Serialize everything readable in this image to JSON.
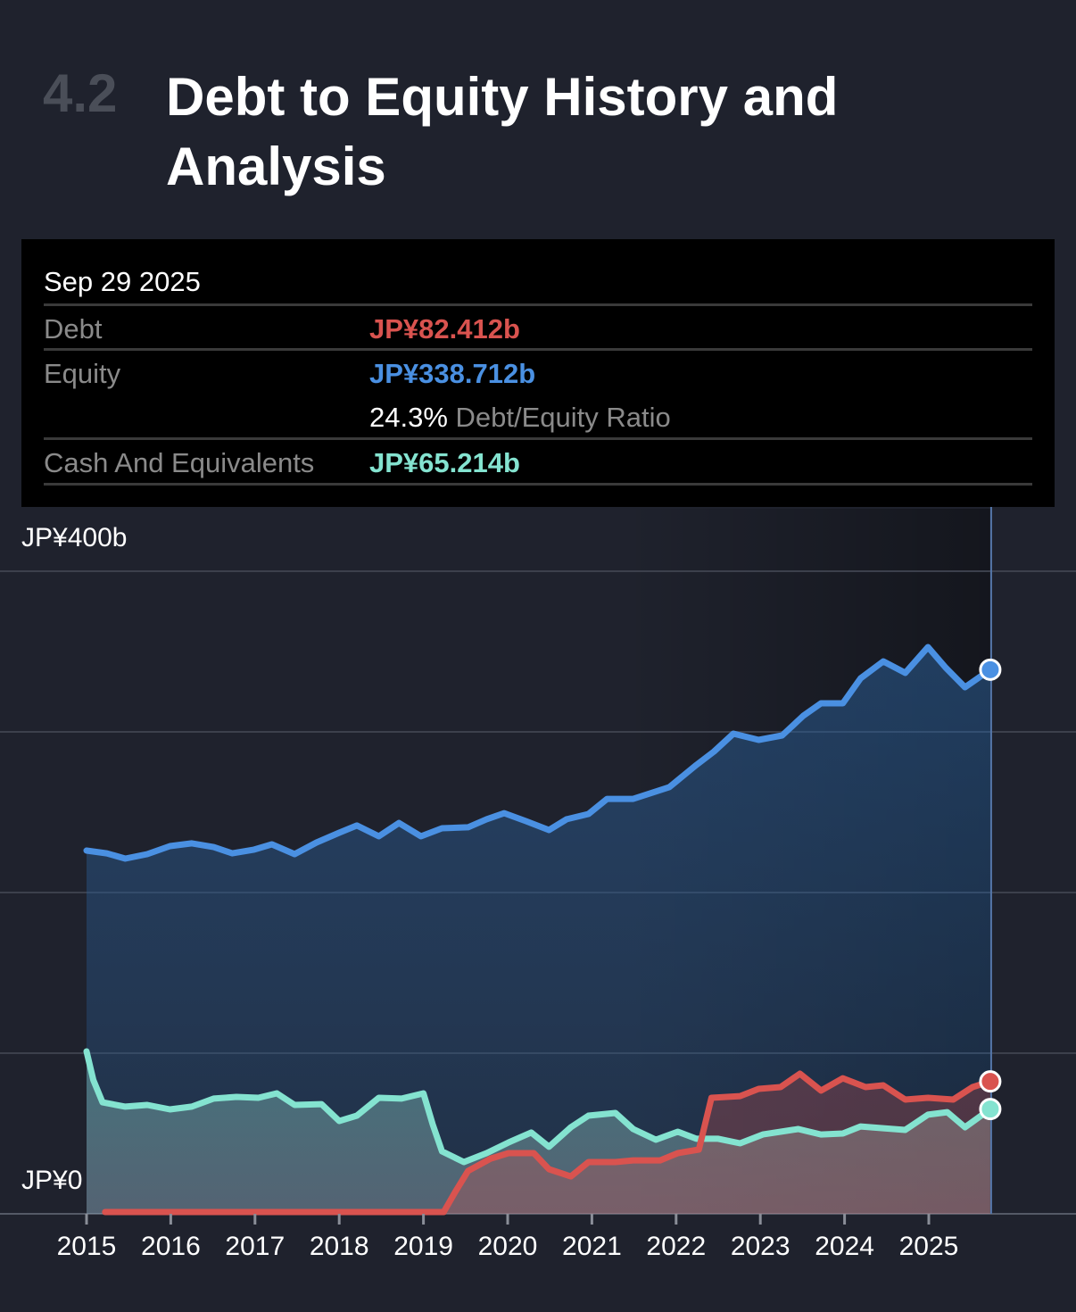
{
  "header": {
    "section_number": "4.2",
    "title": "Debt to Equity History and Analysis"
  },
  "tooltip": {
    "date": "Sep 29 2025",
    "debt_label": "Debt",
    "debt_value": "JP¥82.412b",
    "equity_label": "Equity",
    "equity_value": "JP¥338.712b",
    "ratio_value": "24.3%",
    "ratio_label": "Debt/Equity Ratio",
    "cash_label": "Cash And Equivalents",
    "cash_value": "JP¥65.214b"
  },
  "colors": {
    "debt": "#d9534f",
    "equity": "#4a90e2",
    "cash": "#84e3d0",
    "background": "#1f222d"
  },
  "chart_data": {
    "type": "area",
    "title": "Debt to Equity History and Analysis",
    "xlabel": "",
    "ylabel": "",
    "ylim": [
      0,
      400
    ],
    "xlim": [
      2015,
      2026.2
    ],
    "y_tick_labels": [
      {
        "value": 400,
        "label": "JP¥400b"
      },
      {
        "value": 0,
        "label": "JP¥0"
      }
    ],
    "gridlines": [
      0,
      100,
      200,
      300,
      400
    ],
    "x_tick_labels": [
      "2015",
      "2016",
      "2017",
      "2018",
      "2019",
      "2020",
      "2021",
      "2022",
      "2023",
      "2024",
      "2025"
    ],
    "units": "JP¥ billions",
    "series": [
      {
        "name": "Equity",
        "color": "#4a90e2",
        "points": [
          [
            2015.0,
            226.1
          ],
          [
            2015.24,
            224.4
          ],
          [
            2015.46,
            221.1
          ],
          [
            2015.72,
            223.9
          ],
          [
            2015.99,
            228.9
          ],
          [
            2016.25,
            230.6
          ],
          [
            2016.51,
            228.3
          ],
          [
            2016.73,
            224.4
          ],
          [
            2016.99,
            226.7
          ],
          [
            2017.2,
            230.0
          ],
          [
            2017.47,
            223.9
          ],
          [
            2017.73,
            231.1
          ],
          [
            2018.0,
            237.2
          ],
          [
            2018.21,
            241.7
          ],
          [
            2018.47,
            235.0
          ],
          [
            2018.71,
            243.3
          ],
          [
            2018.97,
            235.0
          ],
          [
            2019.22,
            240.0
          ],
          [
            2019.53,
            240.6
          ],
          [
            2019.75,
            245.6
          ],
          [
            2019.96,
            249.4
          ],
          [
            2020.22,
            244.4
          ],
          [
            2020.49,
            238.9
          ],
          [
            2020.7,
            245.6
          ],
          [
            2020.96,
            248.9
          ],
          [
            2021.18,
            258.3
          ],
          [
            2021.49,
            258.3
          ],
          [
            2021.92,
            265.6
          ],
          [
            2022.24,
            279.4
          ],
          [
            2022.45,
            287.8
          ],
          [
            2022.68,
            298.9
          ],
          [
            2022.98,
            295.0
          ],
          [
            2023.26,
            297.8
          ],
          [
            2023.51,
            310.0
          ],
          [
            2023.72,
            317.8
          ],
          [
            2023.98,
            317.8
          ],
          [
            2024.19,
            333.3
          ],
          [
            2024.46,
            343.9
          ],
          [
            2024.72,
            336.7
          ],
          [
            2024.99,
            352.8
          ],
          [
            2025.2,
            340.0
          ],
          [
            2025.43,
            327.8
          ],
          [
            2025.73,
            338.712
          ]
        ]
      },
      {
        "name": "Debt",
        "color": "#d9534f",
        "points": [
          [
            2015.22,
            1.1
          ],
          [
            2019.24,
            1.1
          ],
          [
            2019.38,
            13.9
          ],
          [
            2019.53,
            26.7
          ],
          [
            2019.8,
            34.4
          ],
          [
            2020.01,
            37.8
          ],
          [
            2020.31,
            37.8
          ],
          [
            2020.49,
            27.8
          ],
          [
            2020.75,
            23.3
          ],
          [
            2020.96,
            32.2
          ],
          [
            2021.28,
            32.2
          ],
          [
            2021.49,
            33.3
          ],
          [
            2021.81,
            33.3
          ],
          [
            2022.02,
            37.8
          ],
          [
            2022.27,
            40.0
          ],
          [
            2022.42,
            72.2
          ],
          [
            2022.76,
            73.3
          ],
          [
            2022.98,
            77.8
          ],
          [
            2023.24,
            78.9
          ],
          [
            2023.47,
            87.2
          ],
          [
            2023.72,
            76.7
          ],
          [
            2023.98,
            84.4
          ],
          [
            2024.25,
            78.9
          ],
          [
            2024.46,
            80.0
          ],
          [
            2024.72,
            71.1
          ],
          [
            2024.99,
            72.2
          ],
          [
            2025.29,
            71.1
          ],
          [
            2025.52,
            78.9
          ],
          [
            2025.73,
            82.412
          ]
        ]
      },
      {
        "name": "Cash And Equivalents",
        "color": "#84e3d0",
        "points": [
          [
            2015.0,
            101.1
          ],
          [
            2015.08,
            83.3
          ],
          [
            2015.19,
            69.4
          ],
          [
            2015.46,
            66.7
          ],
          [
            2015.72,
            67.8
          ],
          [
            2015.99,
            65.0
          ],
          [
            2016.25,
            66.7
          ],
          [
            2016.51,
            71.7
          ],
          [
            2016.78,
            72.8
          ],
          [
            2017.04,
            72.2
          ],
          [
            2017.26,
            75.0
          ],
          [
            2017.47,
            67.8
          ],
          [
            2017.79,
            68.3
          ],
          [
            2018.0,
            57.8
          ],
          [
            2018.21,
            61.1
          ],
          [
            2018.47,
            72.2
          ],
          [
            2018.74,
            71.7
          ],
          [
            2019.0,
            75.0
          ],
          [
            2019.11,
            55.6
          ],
          [
            2019.22,
            38.9
          ],
          [
            2019.48,
            32.2
          ],
          [
            2019.75,
            37.8
          ],
          [
            2020.01,
            44.4
          ],
          [
            2020.28,
            50.6
          ],
          [
            2020.49,
            41.7
          ],
          [
            2020.75,
            53.9
          ],
          [
            2020.96,
            61.1
          ],
          [
            2021.28,
            62.8
          ],
          [
            2021.49,
            52.8
          ],
          [
            2021.76,
            46.1
          ],
          [
            2022.02,
            51.1
          ],
          [
            2022.24,
            46.7
          ],
          [
            2022.5,
            46.7
          ],
          [
            2022.76,
            43.9
          ],
          [
            2023.03,
            49.4
          ],
          [
            2023.45,
            52.8
          ],
          [
            2023.72,
            49.4
          ],
          [
            2023.98,
            50.0
          ],
          [
            2024.19,
            54.4
          ],
          [
            2024.46,
            53.3
          ],
          [
            2024.72,
            52.2
          ],
          [
            2024.99,
            61.7
          ],
          [
            2025.22,
            63.3
          ],
          [
            2025.43,
            53.9
          ],
          [
            2025.73,
            65.214
          ]
        ]
      }
    ],
    "hover": {
      "date": "Sep 29 2025",
      "x": 2025.73
    }
  }
}
